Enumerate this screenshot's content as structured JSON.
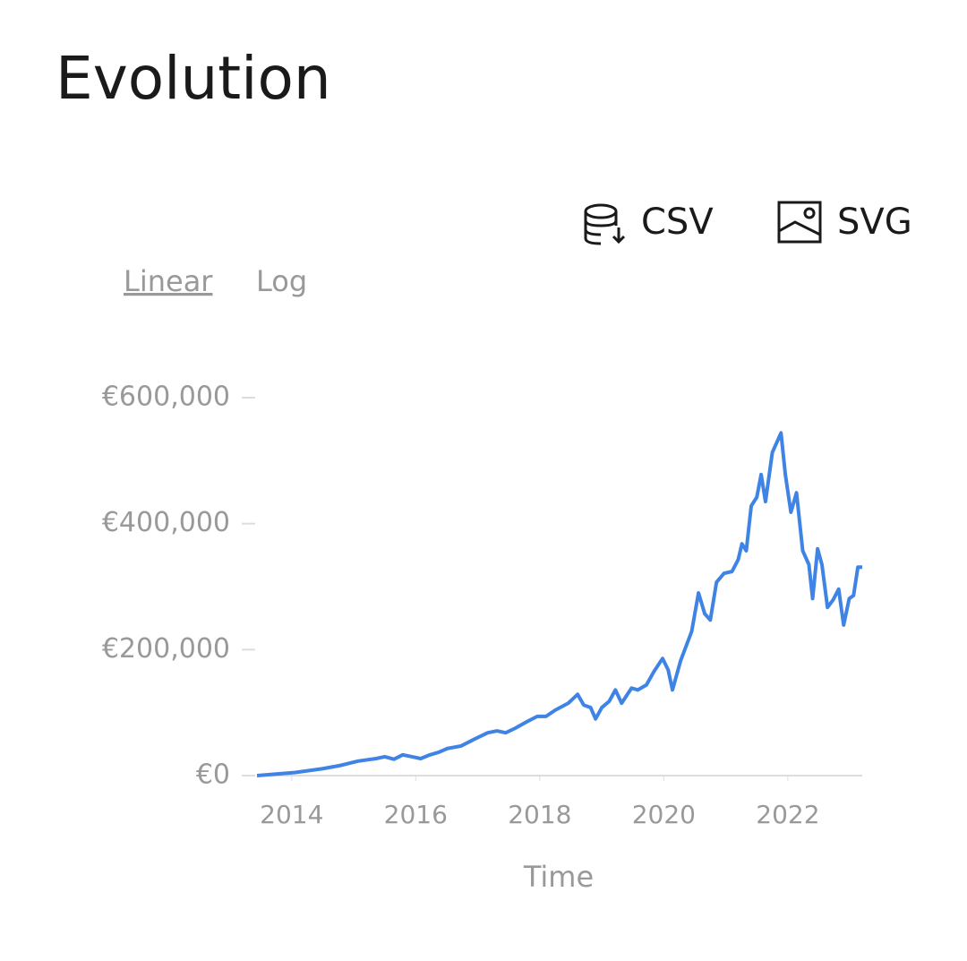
{
  "header": {
    "title": "Evolution"
  },
  "downloads": [
    "CSV",
    "SVG"
  ],
  "scale_options": {
    "items": [
      "Linear",
      "Log"
    ],
    "selected": "Linear"
  },
  "chart_data": {
    "type": "line",
    "x_label": "Time",
    "x": [
      2013.44,
      2014.06,
      2014.5,
      2014.78,
      2015.07,
      2015.36,
      2015.5,
      2015.65,
      2015.79,
      2015.94,
      2016.08,
      2016.23,
      2016.37,
      2016.51,
      2016.73,
      2016.95,
      2017.16,
      2017.31,
      2017.45,
      2017.6,
      2017.82,
      2017.96,
      2018.1,
      2018.25,
      2018.46,
      2018.61,
      2018.71,
      2018.82,
      2018.9,
      2019.0,
      2019.12,
      2019.22,
      2019.32,
      2019.48,
      2019.58,
      2019.72,
      2019.84,
      2019.98,
      2020.07,
      2020.14,
      2020.27,
      2020.45,
      2020.56,
      2020.66,
      2020.75,
      2020.85,
      2020.97,
      2021.1,
      2021.2,
      2021.26,
      2021.33,
      2021.41,
      2021.5,
      2021.57,
      2021.64,
      2021.75,
      2021.89,
      2021.96,
      2022.05,
      2022.14,
      2022.24,
      2022.34,
      2022.4,
      2022.48,
      2022.55,
      2022.64,
      2022.73,
      2022.82,
      2022.9,
      2022.99,
      2023.06,
      2023.13,
      2023.2
    ],
    "series": [
      {
        "color": "#3f84e5",
        "values": [
          0,
          5000,
          11000,
          16000,
          23000,
          27000,
          30000,
          26000,
          33000,
          30000,
          27000,
          33000,
          37000,
          43000,
          47000,
          58000,
          68000,
          71000,
          68000,
          75000,
          87000,
          94000,
          94000,
          104000,
          115000,
          129000,
          112000,
          108000,
          90000,
          108000,
          118000,
          136000,
          115000,
          139000,
          136000,
          144000,
          165000,
          186000,
          168000,
          136000,
          182000,
          229000,
          290000,
          257000,
          247000,
          307000,
          321000,
          324000,
          343000,
          368000,
          357000,
          428000,
          442000,
          478000,
          435000,
          513000,
          544000,
          478000,
          418000,
          449000,
          357000,
          335000,
          281000,
          360000,
          335000,
          267000,
          279000,
          296000,
          239000,
          281000,
          286000,
          331000,
          331000
        ]
      }
    ],
    "xlim": [
      2013.44,
      2023.2
    ],
    "xticks": [
      2014,
      2016,
      2018,
      2020,
      2022
    ],
    "ylim": [
      0,
      600000
    ],
    "yticks": [
      {
        "value": 0,
        "label": "€0"
      },
      {
        "value": 200000,
        "label": "€200,000"
      },
      {
        "value": 400000,
        "label": "€400,000"
      },
      {
        "value": 600000,
        "label": "€600,000"
      }
    ]
  }
}
